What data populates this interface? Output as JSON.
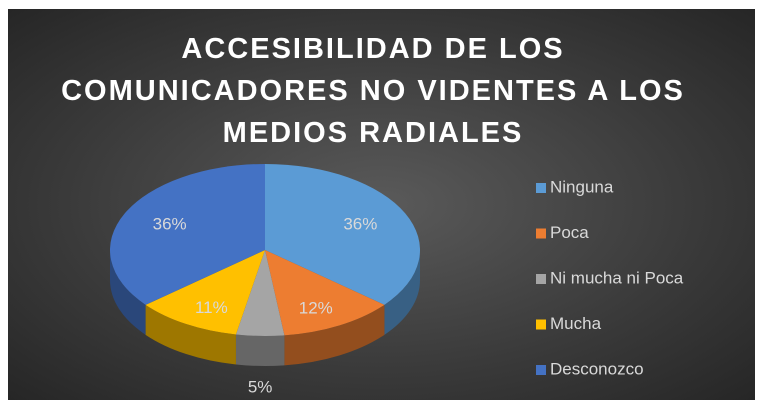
{
  "chart_data": {
    "type": "pie3d",
    "title": "ACCESIBILIDAD DE LOS COMUNICADORES NO VIDENTES A LOS MEDIOS RADIALES",
    "categories": [
      "Ninguna",
      "Poca",
      "Ni mucha ni Poca",
      "Mucha",
      "Desconozco"
    ],
    "values": [
      36,
      12,
      5,
      11,
      36
    ],
    "value_labels": [
      "36%",
      "12%",
      "5%",
      "11%",
      "36%"
    ],
    "colors": [
      "#5b9bd5",
      "#ed7d31",
      "#a5a5a5",
      "#ffc000",
      "#4472c4"
    ],
    "legend": "right"
  }
}
